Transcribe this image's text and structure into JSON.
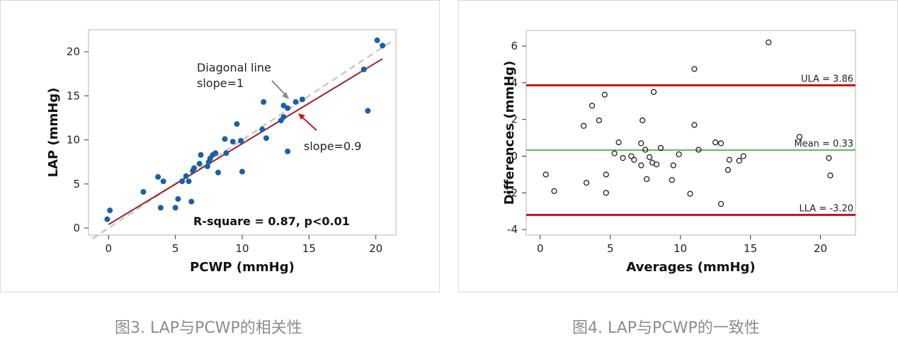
{
  "captions": {
    "left": "图3. LAP与PCWP的相关性",
    "right": "图4. LAP与PCWP的一致性"
  },
  "colors": {
    "points": "#1a5fa8",
    "regression": "#a31f24",
    "diagonal": "#c8c8c8",
    "limits": "#c8161d",
    "mean": "#5cbf5c",
    "arrow_gray": "#8a8a8a",
    "arrow_red": "#c8161d"
  },
  "chart_data": [
    {
      "type": "scatter",
      "title": "",
      "xlabel": "PCWP (mmHg)",
      "ylabel": "LAP (mmHg)",
      "xlim": [
        -1.5,
        21.5
      ],
      "ylim": [
        -0.8,
        22.5
      ],
      "xticks": [
        0,
        5,
        10,
        15,
        20
      ],
      "yticks": [
        0,
        5,
        10,
        15,
        20
      ],
      "grid": false,
      "points": [
        [
          -0.1,
          1.0
        ],
        [
          0.1,
          2.0
        ],
        [
          2.6,
          4.1
        ],
        [
          3.7,
          5.8
        ],
        [
          3.9,
          2.3
        ],
        [
          4.1,
          5.3
        ],
        [
          5.0,
          2.3
        ],
        [
          5.2,
          3.3
        ],
        [
          5.5,
          5.3
        ],
        [
          5.8,
          5.9
        ],
        [
          6.0,
          5.3
        ],
        [
          6.2,
          3.0
        ],
        [
          6.3,
          6.5
        ],
        [
          6.4,
          6.8
        ],
        [
          6.8,
          7.3
        ],
        [
          6.9,
          8.3
        ],
        [
          7.4,
          7.0
        ],
        [
          7.5,
          7.5
        ],
        [
          7.6,
          7.9
        ],
        [
          7.8,
          8.3
        ],
        [
          8.0,
          8.5
        ],
        [
          8.2,
          6.3
        ],
        [
          8.7,
          10.1
        ],
        [
          8.8,
          8.5
        ],
        [
          9.3,
          9.8
        ],
        [
          9.6,
          11.8
        ],
        [
          9.9,
          9.9
        ],
        [
          10.0,
          6.4
        ],
        [
          11.5,
          11.2
        ],
        [
          11.6,
          14.3
        ],
        [
          11.8,
          10.2
        ],
        [
          12.9,
          12.2
        ],
        [
          13.1,
          12.6
        ],
        [
          13.1,
          13.9
        ],
        [
          13.4,
          13.6
        ],
        [
          13.4,
          8.7
        ],
        [
          14.0,
          14.3
        ],
        [
          14.5,
          14.6
        ],
        [
          19.1,
          18.0
        ],
        [
          19.4,
          13.3
        ],
        [
          20.1,
          21.3
        ],
        [
          20.5,
          20.7
        ]
      ],
      "regression": {
        "slope": 0.9,
        "x": [
          0,
          20.5
        ],
        "y": [
          0.4,
          19.2
        ]
      },
      "diagonal": {
        "slope": 1,
        "x": [
          -1.2,
          21.2
        ],
        "y": [
          -1.2,
          21.2
        ]
      },
      "annotations": {
        "diagonal_line_1": "Diagonal line",
        "diagonal_line_2": "slope=1",
        "slope_label": "slope=0.9",
        "stats": "R-square = 0.87, p<0.01"
      }
    },
    {
      "type": "scatter",
      "title": "",
      "xlabel": "Averages (mmHg)",
      "ylabel": "Differences (mmHg)",
      "xlim": [
        -1.0,
        22.5
      ],
      "ylim": [
        -4.3,
        6.85
      ],
      "xticks": [
        0,
        5,
        10,
        15,
        20
      ],
      "yticks": [
        -4,
        -2,
        0,
        2,
        4,
        6
      ],
      "grid": false,
      "points": [
        [
          0.4,
          -1.0
        ],
        [
          1.0,
          -1.9
        ],
        [
          3.1,
          1.65
        ],
        [
          3.3,
          -1.45
        ],
        [
          3.7,
          2.75
        ],
        [
          4.2,
          1.95
        ],
        [
          4.6,
          3.35
        ],
        [
          4.7,
          -1.0
        ],
        [
          4.7,
          -2.0
        ],
        [
          5.3,
          0.15
        ],
        [
          5.6,
          0.75
        ],
        [
          5.9,
          -0.1
        ],
        [
          6.5,
          0.0
        ],
        [
          6.7,
          -0.2
        ],
        [
          7.2,
          0.7
        ],
        [
          7.2,
          -0.5
        ],
        [
          7.3,
          1.95
        ],
        [
          7.5,
          0.35
        ],
        [
          7.6,
          -1.25
        ],
        [
          7.8,
          -0.05
        ],
        [
          8.0,
          -0.35
        ],
        [
          8.1,
          3.5
        ],
        [
          8.3,
          -0.45
        ],
        [
          8.6,
          0.45
        ],
        [
          9.4,
          -1.3
        ],
        [
          9.5,
          -0.5
        ],
        [
          9.9,
          0.1
        ],
        [
          10.7,
          -2.05
        ],
        [
          11.0,
          4.75
        ],
        [
          11.0,
          1.7
        ],
        [
          11.3,
          0.35
        ],
        [
          12.5,
          0.75
        ],
        [
          12.9,
          0.7
        ],
        [
          12.9,
          -2.6
        ],
        [
          13.4,
          -0.75
        ],
        [
          13.5,
          -0.2
        ],
        [
          14.2,
          -0.25
        ],
        [
          14.5,
          0.0
        ],
        [
          16.3,
          6.2
        ],
        [
          18.5,
          1.05
        ],
        [
          20.6,
          -0.1
        ],
        [
          20.7,
          -1.05
        ]
      ],
      "reference_lines": [
        {
          "label": "ULA = 3.86",
          "y": 3.86,
          "color_key": "limits"
        },
        {
          "label": "Mean = 0.33",
          "y": 0.33,
          "color_key": "mean"
        },
        {
          "label": "LLA = -3.20",
          "y": -3.2,
          "color_key": "limits"
        }
      ]
    }
  ]
}
